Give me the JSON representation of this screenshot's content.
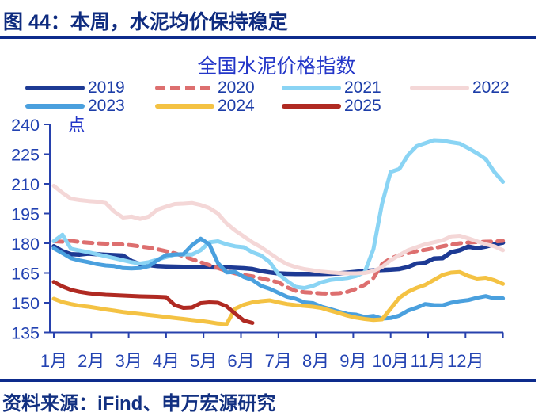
{
  "header": {
    "title": "图 44：本周，水泥均价保持稳定"
  },
  "footer": {
    "source_label": "资料来源：iFind、申万宏源研究"
  },
  "chart_data": {
    "type": "line",
    "title": "全国水泥价格指数",
    "unit_label": "点",
    "ylabel": "点",
    "xlabel": "",
    "ylim": [
      135,
      240
    ],
    "yticks": [
      240,
      225,
      210,
      195,
      180,
      165,
      150,
      135
    ],
    "xtick_labels": [
      "1月",
      "2月",
      "3月",
      "4月",
      "5月",
      "6月",
      "7月",
      "8月",
      "9月",
      "10月",
      "11月",
      "12月"
    ],
    "x_unit": "week of year (0-52)",
    "grid": false,
    "legend_position": "top",
    "axis_color": "#2741ad",
    "tick_color": "#2343b2",
    "title_color": "#2336c8",
    "series": [
      {
        "name": "2019",
        "color": "#1d3a94",
        "style": "solid",
        "values": [
          178.5,
          176,
          174.5,
          174.3,
          174.8,
          174.5,
          174.2,
          174,
          173.8,
          171,
          169.5,
          169,
          168.5,
          168.3,
          168.2,
          168.1,
          168,
          168,
          167.9,
          167.8,
          167.8,
          167.6,
          167.4,
          167,
          166,
          165.3,
          164.8,
          164.6,
          164.5,
          164.5,
          164.5,
          164.5,
          164.6,
          164.8,
          165.2,
          165.6,
          166,
          166.3,
          166.5,
          166.7,
          167,
          168,
          169.8,
          170.2,
          172.3,
          172.5,
          175.5,
          176.5,
          178.3,
          177.5,
          178.3,
          179.5,
          180.3
        ]
      },
      {
        "name": "2020",
        "color": "#dd6f6f",
        "style": "dashed",
        "values": [
          181,
          180.8,
          181.2,
          180.7,
          180.3,
          180,
          179.8,
          179.6,
          179.4,
          179,
          178.4,
          177.8,
          177,
          176,
          175,
          173.5,
          172,
          170.5,
          169,
          167.5,
          166,
          164.8,
          164,
          163.3,
          162.3,
          161.3,
          160.3,
          157.8,
          156,
          155.3,
          155,
          154.7,
          154.6,
          154.8,
          155.5,
          157,
          159,
          162.5,
          169.5,
          172.3,
          174,
          175,
          176,
          176.7,
          177.5,
          178.5,
          179.3,
          180,
          180.4,
          180.6,
          180.8,
          180.9,
          181.2
        ]
      },
      {
        "name": "2021",
        "color": "#8ad4f4",
        "style": "solid",
        "values": [
          181,
          184.3,
          177.2,
          176.3,
          175.5,
          174.5,
          173.5,
          172.5,
          171.5,
          170.5,
          169.8,
          170.5,
          171.8,
          173,
          174.3,
          174.4,
          174.3,
          176.5,
          180.5,
          181,
          179.5,
          178.5,
          178,
          175.5,
          173.8,
          170.5,
          164.5,
          161,
          158,
          157.4,
          158.5,
          160.3,
          161.5,
          162,
          162.5,
          163.5,
          165.5,
          177,
          200,
          216,
          217.5,
          224.5,
          229,
          230.5,
          232,
          231.8,
          231,
          230.3,
          228,
          225.5,
          222.5,
          216,
          211
        ]
      },
      {
        "name": "2022",
        "color": "#f4d7d7",
        "style": "solid",
        "values": [
          209,
          205.5,
          202.5,
          201.8,
          201.3,
          201,
          200.3,
          196,
          193,
          193.5,
          192.3,
          193.5,
          197,
          198.5,
          199.8,
          200,
          200.3,
          199.3,
          197.8,
          195,
          190,
          186.5,
          183.5,
          180.5,
          178,
          175,
          172,
          169.5,
          168,
          167,
          166.3,
          165.7,
          165.3,
          165,
          164.8,
          164.8,
          165,
          166,
          168,
          171.5,
          174,
          176.5,
          178,
          179.5,
          180.5,
          181.5,
          183.5,
          183.8,
          182.5,
          181,
          179.5,
          178.5,
          176.5
        ]
      },
      {
        "name": "2023",
        "color": "#4aa0de",
        "style": "solid",
        "values": [
          177.5,
          175,
          172.5,
          171.3,
          170.5,
          169.5,
          168.8,
          168.5,
          167.5,
          167.3,
          167.5,
          168.5,
          171.5,
          174,
          174.3,
          174.5,
          179,
          182.3,
          179.5,
          170,
          165.3,
          165.5,
          163,
          161.5,
          158.5,
          157,
          155,
          153,
          152,
          150.2,
          149.8,
          148,
          146.8,
          145.5,
          144.3,
          144,
          142.8,
          143.3,
          142,
          142.3,
          143.5,
          146,
          147.5,
          149.3,
          148.8,
          148.7,
          150,
          150.8,
          151.3,
          152.5,
          153.3,
          152.2,
          152.2
        ]
      },
      {
        "name": "2024",
        "color": "#f4c243",
        "style": "solid",
        "values": [
          152,
          150.3,
          149.3,
          148.5,
          148,
          147.3,
          146.6,
          146,
          145.3,
          144.8,
          144.3,
          143.8,
          143.3,
          142.8,
          142.3,
          141.8,
          141.3,
          140.8,
          140.2,
          139.5,
          139.2,
          147,
          149,
          150.2,
          150.8,
          151.2,
          150.2,
          149.3,
          148.8,
          148.4,
          148,
          147.3,
          146,
          144.8,
          143.5,
          142.5,
          141.8,
          141.3,
          141.6,
          147,
          152.5,
          155.5,
          157.5,
          159,
          161.5,
          164,
          165.2,
          165.5,
          163.5,
          162.2,
          162.6,
          161.3,
          159.5
        ]
      },
      {
        "name": "2025",
        "color": "#b02a22",
        "style": "solid",
        "values": [
          160.5,
          158.2,
          156.5,
          155.5,
          154.8,
          154.3,
          154,
          153.8,
          153.6,
          153.4,
          153.2,
          153.1,
          153,
          152.8,
          148.8,
          147.4,
          147.6,
          149.8,
          150.2,
          150,
          148.2,
          144.5,
          141,
          139.8,
          null,
          null,
          null,
          null,
          null,
          null,
          null,
          null,
          null,
          null,
          null,
          null,
          null,
          null,
          null,
          null,
          null,
          null,
          null,
          null,
          null,
          null,
          null,
          null,
          null,
          null,
          null,
          null,
          null
        ]
      }
    ]
  }
}
